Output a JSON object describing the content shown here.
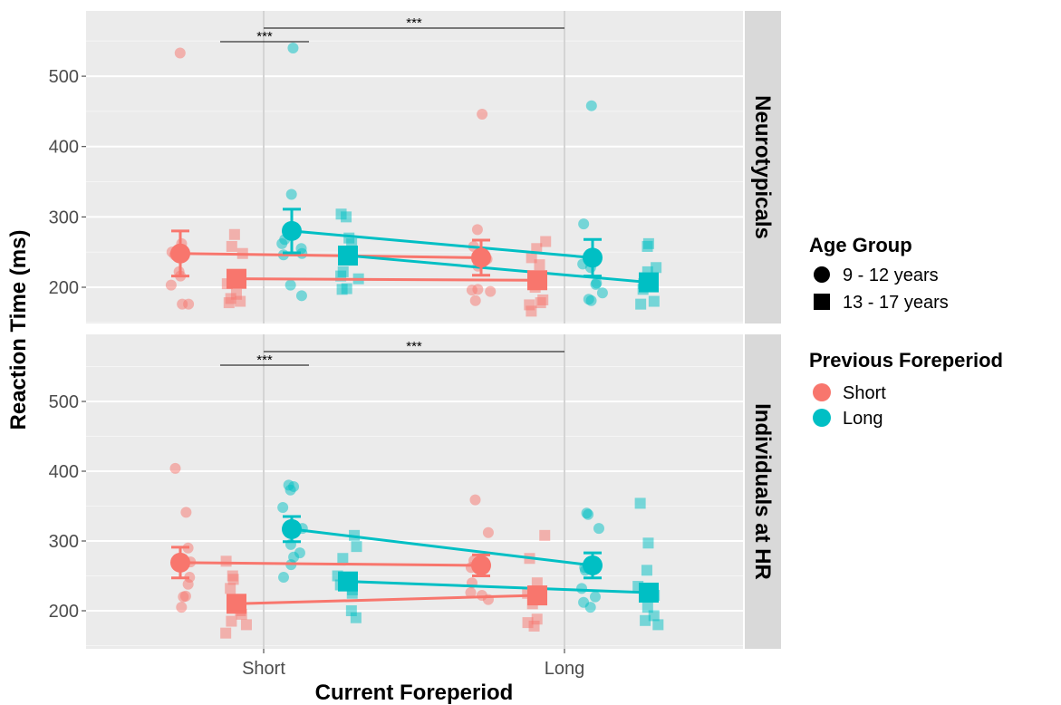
{
  "chart_data": {
    "type": "scatter",
    "xlabel": "Current Foreperiod",
    "ylabel": "Reaction Time (ms)",
    "x_categories": [
      "Short",
      "Long"
    ],
    "yticks": [
      200,
      300,
      400,
      500
    ],
    "ylim": [
      148,
      592
    ],
    "grid": true,
    "legend_position": "right",
    "colors": {
      "short": "#f8766d",
      "long": "#00bfc4"
    },
    "legend": {
      "age_group": {
        "title": "Age Group",
        "items": [
          "9 - 12 years",
          "13 - 17 years"
        ]
      },
      "previous_foreperiod": {
        "title": "Previous Foreperiod",
        "items": [
          "Short",
          "Long"
        ]
      }
    },
    "significance": {
      "label": "***",
      "short_vs_long_current": "***",
      "short_prev_within_short_current": "***"
    },
    "panels": [
      {
        "name": "Neurotypicals",
        "groups": [
          {
            "current": "Short",
            "previous": "Short",
            "age": "9 - 12 years",
            "mean": 248,
            "se": 32,
            "points": [
              533,
              262,
              250,
              246,
              222,
              216,
              203,
              176,
              176
            ]
          },
          {
            "current": "Short",
            "previous": "Short",
            "age": "13 - 17 years",
            "mean": 212,
            "se": 0,
            "points": [
              275,
              258,
              248,
              215,
              205,
              190,
              184,
              180,
              178
            ]
          },
          {
            "current": "Short",
            "previous": "Long",
            "age": "9 - 12 years",
            "mean": 280,
            "se": 31,
            "points": [
              540,
              332,
              268,
              262,
              255,
              248,
              246,
              203,
              188
            ]
          },
          {
            "current": "Short",
            "previous": "Long",
            "age": "13 - 17 years",
            "mean": 245,
            "se": 0,
            "points": [
              304,
              300,
              270,
              262,
              222,
              216,
              212,
              198,
              197
            ]
          },
          {
            "current": "Long",
            "previous": "Short",
            "age": "9 - 12 years",
            "mean": 242,
            "se": 25,
            "points": [
              446,
              282,
              258,
              240,
              230,
              197,
              196,
              194,
              181
            ]
          },
          {
            "current": "Long",
            "previous": "Short",
            "age": "13 - 17 years",
            "mean": 210,
            "se": 0,
            "points": [
              265,
              255,
              242,
              232,
              200,
              182,
              178,
              175,
              166
            ]
          },
          {
            "current": "Long",
            "previous": "Long",
            "age": "9 - 12 years",
            "mean": 242,
            "se": 26,
            "points": [
              458,
              290,
              233,
              228,
              206,
              204,
              192,
              183,
              181
            ]
          },
          {
            "current": "Long",
            "previous": "Long",
            "age": "13 - 17 years",
            "mean": 207,
            "se": 0,
            "points": [
              262,
              258,
              228,
              222,
              212,
              205,
              197,
              180,
              176
            ]
          }
        ]
      },
      {
        "name": "Individuals at HR",
        "groups": [
          {
            "current": "Short",
            "previous": "Short",
            "age": "9 - 12 years",
            "mean": 269,
            "se": 22,
            "points": [
              404,
              341,
              290,
              270,
              248,
              238,
              221,
              220,
              205
            ]
          },
          {
            "current": "Short",
            "previous": "Short",
            "age": "13 - 17 years",
            "mean": 210,
            "se": 0,
            "points": [
              271,
              250,
              245,
              232,
              213,
              200,
              195,
              185,
              180,
              168
            ]
          },
          {
            "current": "Short",
            "previous": "Long",
            "age": "9 - 12 years",
            "mean": 317,
            "se": 18,
            "points": [
              380,
              378,
              373,
              348,
              318,
              295,
              283,
              277,
              266,
              248
            ]
          },
          {
            "current": "Short",
            "previous": "Long",
            "age": "13 - 17 years",
            "mean": 242,
            "se": 0,
            "points": [
              308,
              292,
              275,
              250,
              237,
              230,
              225,
              200,
              190
            ]
          },
          {
            "current": "Long",
            "previous": "Short",
            "age": "9 - 12 years",
            "mean": 265,
            "se": 15,
            "points": [
              359,
              312,
              272,
              262,
              240,
              226,
              222,
              216
            ]
          },
          {
            "current": "Long",
            "previous": "Short",
            "age": "13 - 17 years",
            "mean": 222,
            "se": 0,
            "points": [
              308,
              275,
              240,
              225,
              210,
              188,
              183,
              178
            ]
          },
          {
            "current": "Long",
            "previous": "Long",
            "age": "9 - 12 years",
            "mean": 265,
            "se": 18,
            "points": [
              340,
              338,
              318,
              262,
              258,
              232,
              220,
              212,
              205
            ]
          },
          {
            "current": "Long",
            "previous": "Long",
            "age": "13 - 17 years",
            "mean": 226,
            "se": 0,
            "points": [
              354,
              297,
              258,
              235,
              222,
              205,
              193,
              186,
              180
            ]
          }
        ]
      }
    ]
  }
}
